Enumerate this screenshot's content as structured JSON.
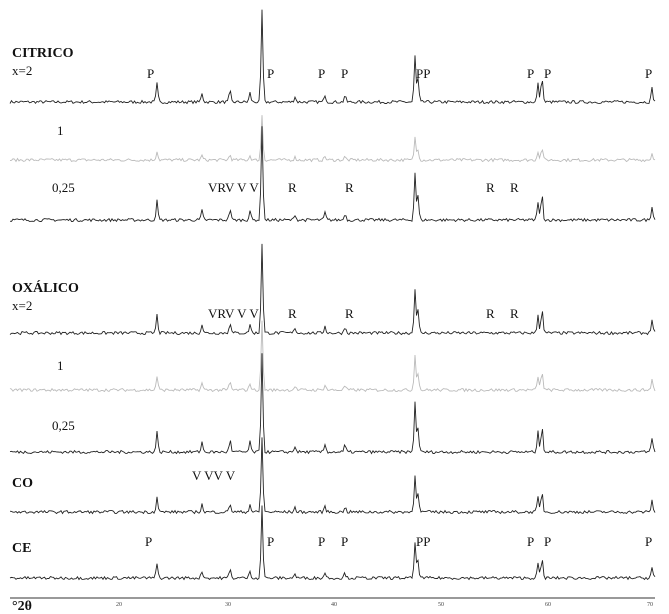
{
  "groups": [
    {
      "title": "CITRICO",
      "traces": [
        {
          "label": "x=2",
          "peaks": [
            "P",
            "P",
            "P",
            "P",
            "PP",
            "P",
            "P",
            "P"
          ]
        },
        {
          "label": "1"
        },
        {
          "label": "0,25",
          "peaks": [
            "VRV V V",
            "R",
            "R",
            "R",
            "R"
          ]
        }
      ]
    },
    {
      "title": "OXÁLICO",
      "traces": [
        {
          "label": "x=2",
          "peaks": [
            "VRV V V",
            "R",
            "R",
            "R",
            "R"
          ]
        },
        {
          "label": "1"
        },
        {
          "label": "0,25"
        }
      ]
    },
    {
      "title": "CO",
      "traces": [
        {
          "peaks": [
            "V VV V"
          ]
        }
      ]
    },
    {
      "title": "CE",
      "traces": [
        {
          "peaks": [
            "P",
            "P",
            "P",
            "P",
            "PP",
            "P",
            "P",
            "P"
          ]
        }
      ]
    }
  ],
  "axis": {
    "ticks": [
      "20",
      "30",
      "40",
      "50",
      "60",
      "70"
    ],
    "label": "°2θ"
  }
}
